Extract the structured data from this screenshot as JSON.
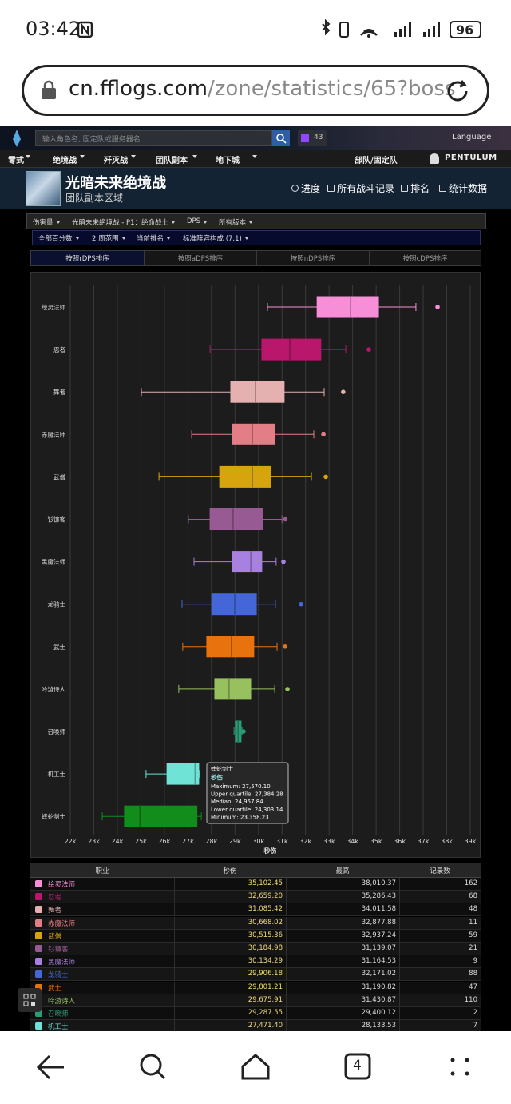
{
  "status_bar": {
    "time": "03:42",
    "battery": "96"
  },
  "address_bar": {
    "host": "cn.fflogs.com",
    "path": "/zone/statistics/65?boss"
  },
  "site_header": {
    "search_placeholder": "输入角色名, 固定队或服务器名",
    "twitch_count": "43",
    "language": "Language"
  },
  "nav": {
    "items": [
      "零式",
      "绝境战",
      "歼灭战",
      "团队副本",
      "地下城"
    ],
    "right": "部队/固定队",
    "user": "PENTULUM"
  },
  "zone": {
    "title": "光暗未来绝境战",
    "subtitle": "团队副本区域",
    "links": [
      "进度",
      "所有战斗记录",
      "排名",
      "统计数据"
    ]
  },
  "filters": [
    [
      "伤害量",
      "光暗未来绝境战 - P1：绝命战士",
      "DPS",
      "所有版本"
    ],
    [
      "全部百分数",
      "2 周范围",
      "当前排名",
      "标准阵容构成 (7.1)"
    ]
  ],
  "tabs": [
    "按照rDPS排序",
    "按照aDPS排序",
    "按照nDPS排序",
    "按照cDPS排序"
  ],
  "chart_data": {
    "type": "boxplot",
    "orientation": "horizontal",
    "xlabel": "秒伤",
    "categories": [
      "绘灵法师",
      "忍者",
      "舞者",
      "赤魔法师",
      "武僧",
      "钐镰客",
      "黑魔法师",
      "龙骑士",
      "武士",
      "吟游诗人",
      "召唤师",
      "机工士",
      "蝰蛇剑士"
    ],
    "colors": [
      "#f78fd8",
      "#b8176c",
      "#e4b0b0",
      "#e47e86",
      "#d6a40c",
      "#985a92",
      "#a880e0",
      "#4466d8",
      "#e8730e",
      "#97c05f",
      "#2d9b78",
      "#6ee3d6",
      "#128c1a"
    ],
    "min": [
      30380,
      27940,
      25020,
      27160,
      25770,
      27020,
      27260,
      26750,
      26780,
      26610,
      28960,
      25220,
      23358.23
    ],
    "q1": [
      32490,
      30140,
      28820,
      28890,
      28350,
      27940,
      28890,
      28010,
      27800,
      28140,
      29020,
      26110,
      24303.14
    ],
    "median": [
      33910,
      31330,
      29870,
      29740,
      29740,
      28920,
      29670,
      28990,
      28850,
      28750,
      29130,
      27300,
      24957.84
    ],
    "q3": [
      35100,
      32650,
      31090,
      30690,
      30520,
      30180,
      30140,
      29910,
      29800,
      29670,
      29260,
      27460,
      27384.28
    ],
    "max": [
      36690,
      33710,
      32790,
      32350,
      32250,
      31000,
      30750,
      30720,
      30790,
      30690,
      29300,
      27500,
      27570.1
    ],
    "outliers": [
      37610,
      34690,
      33600,
      32760,
      32860,
      31140,
      31060,
      31810,
      31130,
      31230,
      29360,
      null,
      null
    ],
    "xlim": [
      22000,
      39000
    ],
    "xticks": [
      {
        "value": 22000,
        "label": "22k"
      },
      {
        "value": 23000,
        "label": "23k"
      },
      {
        "value": 24000,
        "label": "24k"
      },
      {
        "value": 25000,
        "label": "25k"
      },
      {
        "value": 26000,
        "label": "26k"
      },
      {
        "value": 27000,
        "label": "27k"
      },
      {
        "value": 28000,
        "label": "28k"
      },
      {
        "value": 29000,
        "label": "29k"
      },
      {
        "value": 30000,
        "label": "30k"
      },
      {
        "value": 31000,
        "label": "31k"
      },
      {
        "value": 32000,
        "label": "32k"
      },
      {
        "value": 33000,
        "label": "33k"
      },
      {
        "value": 34000,
        "label": "34k"
      },
      {
        "value": 35000,
        "label": "35k"
      },
      {
        "value": 36000,
        "label": "36k"
      },
      {
        "value": 37000,
        "label": "37k"
      },
      {
        "value": 38000,
        "label": "38k"
      },
      {
        "value": 39000,
        "label": "39k"
      }
    ],
    "grid": true,
    "tooltip": {
      "title": "蝰蛇剑士",
      "series": "秒伤",
      "lines": [
        "Maximum: 27,570.10",
        "Upper quartile: 27,384.28",
        "Median: 24,957.84",
        "Lower quartile: 24,303.14",
        "Minimum: 23,358.23"
      ]
    }
  },
  "table": {
    "headers": [
      "职业",
      "秒伤",
      "最高",
      "记录数"
    ],
    "rows": [
      [
        "绘灵法师",
        "35,102.45",
        "38,010.37",
        "162"
      ],
      [
        "忍者",
        "32,659.20",
        "35,286.43",
        "68"
      ],
      [
        "舞者",
        "31,085.42",
        "34,011.58",
        "48"
      ],
      [
        "赤魔法师",
        "30,668.02",
        "32,877.88",
        "11"
      ],
      [
        "武僧",
        "30,515.36",
        "32,937.24",
        "59"
      ],
      [
        "钐镰客",
        "30,184.98",
        "31,139.07",
        "21"
      ],
      [
        "黑魔法师",
        "30,134.29",
        "31,164.53",
        "9"
      ],
      [
        "龙骑士",
        "29,906.18",
        "32,171.02",
        "88"
      ],
      [
        "武士",
        "29,801.21",
        "31,190.82",
        "47"
      ],
      [
        "吟游诗人",
        "29,675.91",
        "31,430.87",
        "110"
      ],
      [
        "召唤师",
        "29,287.55",
        "29,400.12",
        "2"
      ],
      [
        "机工士",
        "27,471.40",
        "28,133.53",
        "7"
      ]
    ]
  },
  "bottom_nav": {
    "tab_count": "4"
  }
}
